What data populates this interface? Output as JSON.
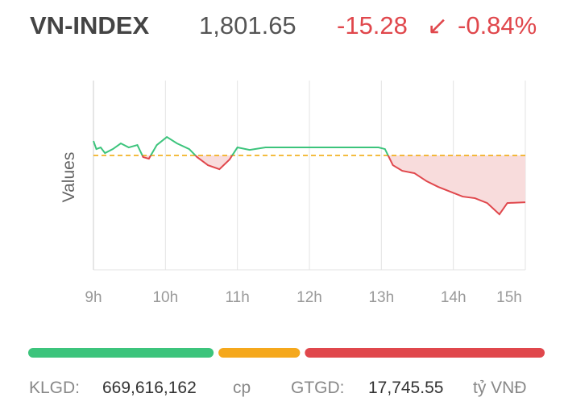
{
  "header": {
    "title": "VN-INDEX",
    "price": "1,801.65",
    "change": "-15.28",
    "arrow": "↙",
    "change_percent": "-0.84%"
  },
  "chart_data": {
    "type": "line",
    "y_label": "Values",
    "x": [
      9.0,
      9.04,
      9.1,
      9.16,
      9.27,
      9.38,
      9.49,
      9.61,
      9.69,
      9.77,
      9.88,
      10.02,
      10.16,
      10.33,
      10.44,
      10.59,
      10.75,
      10.89,
      11.0,
      11.17,
      11.39,
      11.99,
      12.96,
      13.05,
      13.16,
      13.29,
      13.46,
      13.63,
      13.79,
      13.96,
      14.13,
      14.3,
      14.47,
      14.64,
      14.75,
      15.0
    ],
    "series": [
      {
        "name": "VN-INDEX",
        "values": [
          1821.66,
          1819.03,
          1819.56,
          1817.72,
          1819.03,
          1820.88,
          1819.56,
          1820.35,
          1816.4,
          1815.88,
          1820.35,
          1822.98,
          1820.88,
          1819.03,
          1816.4,
          1813.77,
          1812.46,
          1815.61,
          1819.56,
          1818.77,
          1819.56,
          1819.56,
          1819.56,
          1819.03,
          1813.77,
          1811.93,
          1811.14,
          1808.51,
          1806.67,
          1805.09,
          1803.51,
          1802.99,
          1801.41,
          1797.73,
          1801.41,
          1801.65
        ]
      }
    ],
    "up_color": "#3cc47c",
    "down_color": "#e0474c",
    "area_color": "#f8dcdc",
    "reference_line": 1816.93,
    "reference_color": "#f0a500",
    "xlim": [
      9,
      15
    ],
    "xticks": [
      {
        "value": 9,
        "label": "9h"
      },
      {
        "value": 10,
        "label": "10h"
      },
      {
        "value": 11,
        "label": "11h"
      },
      {
        "value": 12,
        "label": "12h"
      },
      {
        "value": 13,
        "label": "13h"
      },
      {
        "value": 14,
        "label": "14h"
      },
      {
        "value": 15,
        "label": "15h"
      }
    ],
    "ylim": [
      1779.6,
      1841.4
    ],
    "grid": true
  },
  "breadth": {
    "values": [
      150,
      66,
      194
    ],
    "colors": [
      "#3cc47c",
      "#f5a81c",
      "#e0474c"
    ]
  },
  "footer": {
    "volume_label": "KLGD:",
    "volume": "669,616,162",
    "volume_unit": "cp",
    "value_label": "GTGD:",
    "value": "17,745.55",
    "value_unit": "tỷ VNĐ"
  }
}
